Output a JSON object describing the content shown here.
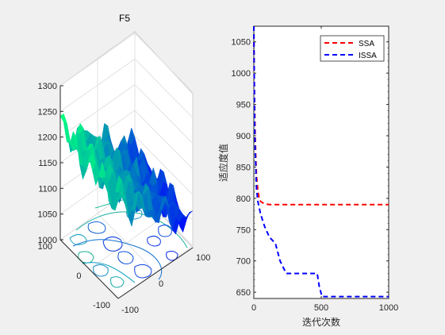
{
  "chart_data": [
    {
      "type": "surface",
      "title": "F5",
      "z_ticks": [
        "1000",
        "1050",
        "1100",
        "1150",
        "1200",
        "1250",
        "1300"
      ],
      "x_ticks": [
        "100",
        "0",
        "-100"
      ],
      "y_ticks": [
        "-100",
        "0",
        "100"
      ],
      "zlim": [
        1000,
        1300
      ],
      "xlim": [
        -100,
        100
      ],
      "ylim": [
        -100,
        100
      ],
      "colormap": [
        "#00ff80",
        "#0000ff"
      ],
      "grid": true
    },
    {
      "type": "line",
      "xlabel": "迭代次数",
      "ylabel": "适应度值",
      "xlim": [
        0,
        1000
      ],
      "ylim": [
        640,
        1075
      ],
      "x_ticks": [
        "0",
        "500",
        "1000"
      ],
      "y_ticks": [
        "650",
        "700",
        "750",
        "800",
        "850",
        "900",
        "950",
        "1000",
        "1050"
      ],
      "legend_position": "top-right",
      "series": [
        {
          "name": "SSA",
          "color": "#ff0000",
          "style": "dashed",
          "points": [
            [
              0,
              1075
            ],
            [
              2,
              1010
            ],
            [
              5,
              960
            ],
            [
              10,
              900
            ],
            [
              15,
              860
            ],
            [
              20,
              835
            ],
            [
              30,
              812
            ],
            [
              40,
              800
            ],
            [
              50,
              795
            ],
            [
              80,
              791
            ],
            [
              120,
              790
            ],
            [
              1000,
              790
            ]
          ]
        },
        {
          "name": "ISSA",
          "color": "#0000ff",
          "style": "dashed",
          "points": [
            [
              0,
              1075
            ],
            [
              3,
              1000
            ],
            [
              6,
              920
            ],
            [
              10,
              880
            ],
            [
              15,
              845
            ],
            [
              20,
              815
            ],
            [
              30,
              795
            ],
            [
              50,
              775
            ],
            [
              80,
              755
            ],
            [
              115,
              738
            ],
            [
              160,
              728
            ],
            [
              195,
              700
            ],
            [
              240,
              680
            ],
            [
              470,
              680
            ],
            [
              485,
              660
            ],
            [
              505,
              643
            ],
            [
              520,
              643
            ],
            [
              1000,
              643
            ]
          ]
        }
      ]
    }
  ]
}
